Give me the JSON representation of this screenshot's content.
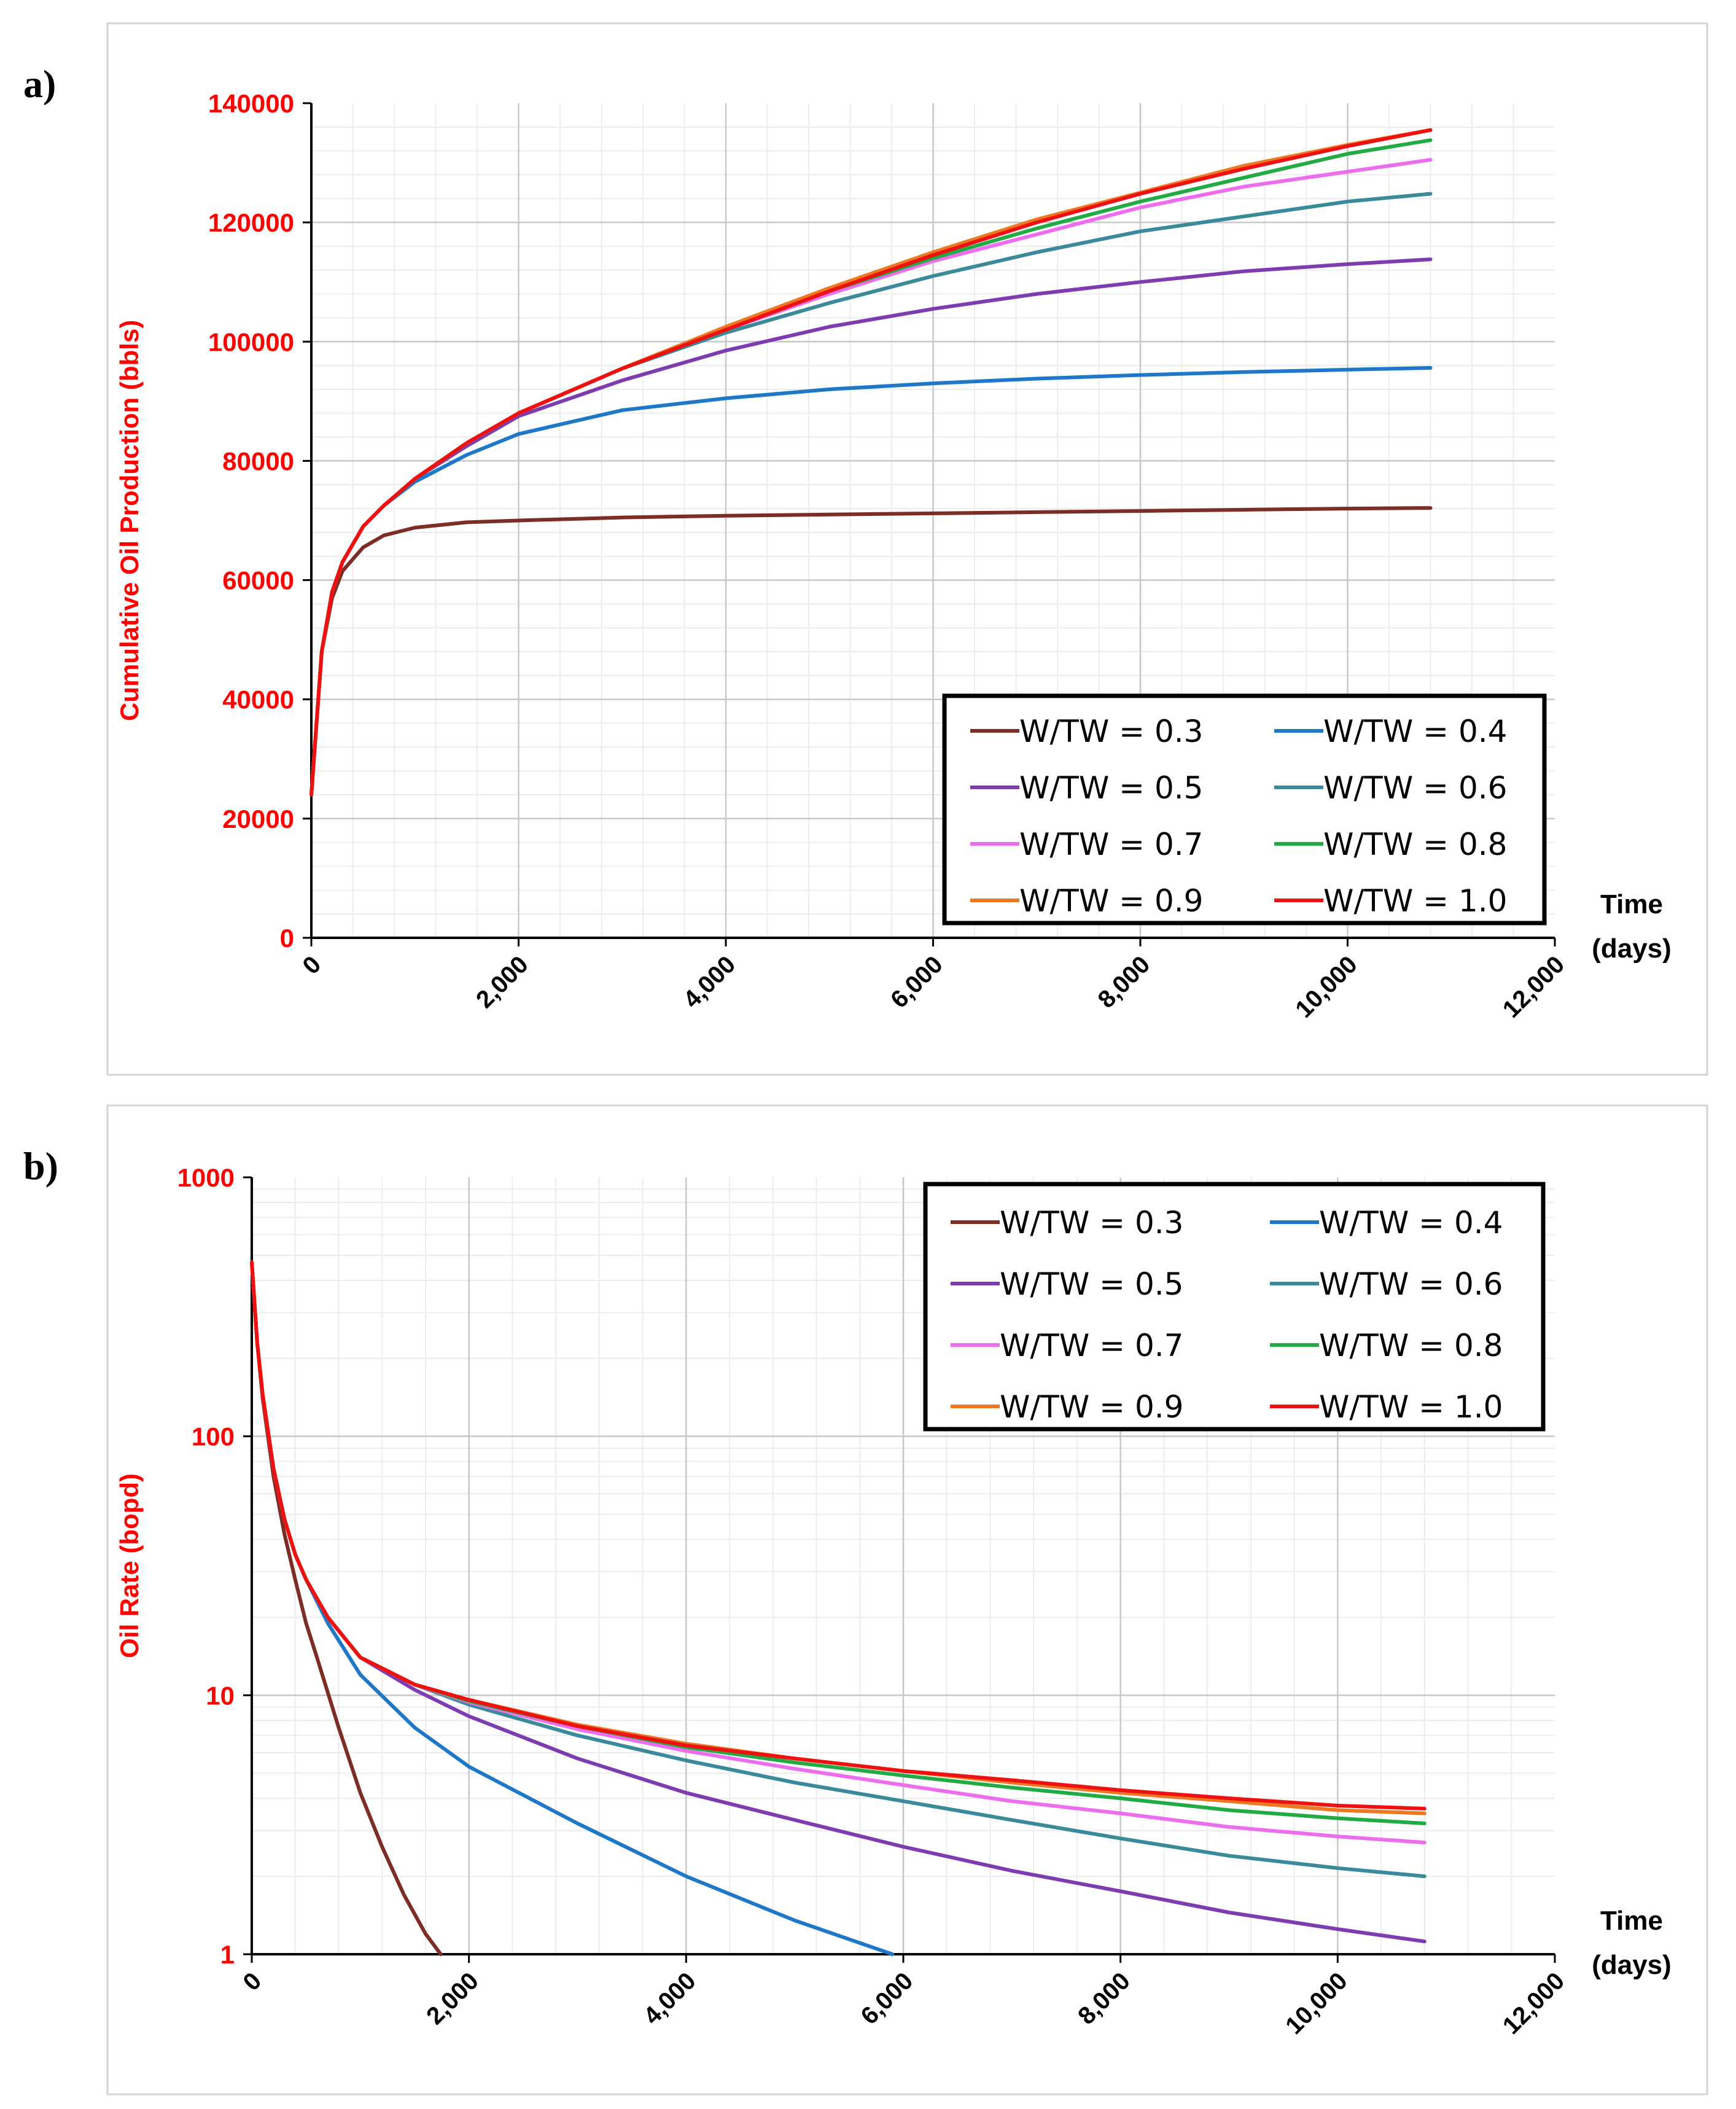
{
  "panels": {
    "a": {
      "label": "a)"
    },
    "b": {
      "label": "b)"
    }
  },
  "time_label": {
    "line1": "Time",
    "line2": "(days)"
  },
  "chart_data": [
    {
      "type": "line",
      "title": "",
      "xlabel": "Time (days)",
      "ylabel": "Cumulative Oil Production (bbls)",
      "xlim": [
        0,
        12000
      ],
      "ylim": [
        0,
        140000
      ],
      "yscale": "linear",
      "x_ticks": [
        "0",
        "2,000",
        "4,000",
        "6,000",
        "8,000",
        "10,000",
        "12,000"
      ],
      "y_ticks": [
        "0",
        "20000",
        "40000",
        "60000",
        "80000",
        "100000",
        "120000",
        "140000"
      ],
      "legend_position": "bottom-right",
      "x": [
        0,
        100,
        200,
        300,
        500,
        700,
        1000,
        1500,
        2000,
        3000,
        4000,
        5000,
        6000,
        7000,
        8000,
        9000,
        10000,
        10800
      ],
      "series": [
        {
          "name": "W/TW = 0.3",
          "color": "#7b2d26",
          "values": [
            24000,
            48000,
            57000,
            61500,
            65500,
            67500,
            68800,
            69700,
            70000,
            70500,
            70800,
            71000,
            71200,
            71400,
            71600,
            71800,
            72000,
            72100
          ]
        },
        {
          "name": "W/TW = 0.4",
          "color": "#1f77c8",
          "values": [
            24000,
            48000,
            58000,
            63000,
            69000,
            72500,
            76500,
            81000,
            84500,
            88500,
            90500,
            92000,
            93000,
            93800,
            94400,
            94900,
            95300,
            95600
          ]
        },
        {
          "name": "W/TW = 0.5",
          "color": "#7d3caf",
          "values": [
            24000,
            48000,
            58000,
            63000,
            69000,
            72500,
            77000,
            82500,
            87500,
            93500,
            98500,
            102500,
            105500,
            108000,
            110000,
            111800,
            113000,
            113800
          ]
        },
        {
          "name": "W/TW = 0.6",
          "color": "#3a8a9a",
          "values": [
            24000,
            48000,
            58000,
            63000,
            69000,
            72500,
            77000,
            83000,
            88000,
            95500,
            101500,
            106500,
            111000,
            115000,
            118500,
            121000,
            123500,
            124800
          ]
        },
        {
          "name": "W/TW = 0.7",
          "color": "#ee6cee",
          "values": [
            24000,
            48000,
            58000,
            63000,
            69000,
            72500,
            77000,
            83000,
            88000,
            95500,
            102000,
            108000,
            113500,
            118000,
            122500,
            126000,
            128500,
            130500
          ]
        },
        {
          "name": "W/TW = 0.8",
          "color": "#22aa44",
          "values": [
            24000,
            48000,
            58000,
            63000,
            69000,
            72500,
            77000,
            83000,
            88000,
            95500,
            102000,
            108500,
            114000,
            119000,
            123500,
            127500,
            131500,
            133800
          ]
        },
        {
          "name": "W/TW = 0.9",
          "color": "#ee7722",
          "values": [
            24000,
            48000,
            58000,
            63000,
            69000,
            72500,
            77000,
            83000,
            88000,
            95500,
            102500,
            109000,
            115000,
            120500,
            125000,
            129500,
            133000,
            135500
          ]
        },
        {
          "name": "W/TW = 1.0",
          "color": "#ee1111",
          "values": [
            24000,
            48000,
            58000,
            63000,
            69000,
            72500,
            77000,
            83000,
            88000,
            95500,
            102000,
            108500,
            114500,
            120000,
            124800,
            129000,
            132800,
            135500
          ]
        }
      ]
    },
    {
      "type": "line",
      "title": "",
      "xlabel": "Time (days)",
      "ylabel": "Oil Rate (bopd)",
      "xlim": [
        0,
        12000
      ],
      "ylim": [
        1,
        1000
      ],
      "yscale": "log",
      "x_ticks": [
        "0",
        "2,000",
        "4,000",
        "6,000",
        "8,000",
        "10,000",
        "12,000"
      ],
      "y_ticks": [
        "1",
        "10",
        "100",
        "1000"
      ],
      "legend_position": "top-right",
      "series": [
        {
          "name": "W/TW = 0.3",
          "color": "#7b2d26",
          "x": [
            0,
            50,
            100,
            200,
            300,
            400,
            500,
            600,
            800,
            1000,
            1200,
            1400,
            1600,
            1740
          ],
          "values": [
            470,
            230,
            140,
            70,
            42,
            28,
            19,
            14,
            7.5,
            4.2,
            2.6,
            1.7,
            1.2,
            1.0
          ]
        },
        {
          "name": "W/TW = 0.4",
          "color": "#1f77c8",
          "x": [
            0,
            50,
            100,
            200,
            300,
            400,
            500,
            700,
            1000,
            1500,
            2000,
            3000,
            4000,
            5000,
            5900
          ],
          "values": [
            470,
            230,
            145,
            75,
            48,
            35,
            28,
            19,
            12,
            7.5,
            5.3,
            3.2,
            2.0,
            1.35,
            1.0
          ]
        },
        {
          "name": "W/TW = 0.5",
          "color": "#7d3caf",
          "x": [
            0,
            50,
            100,
            200,
            300,
            400,
            500,
            700,
            1000,
            1500,
            2000,
            3000,
            4000,
            5000,
            6000,
            7000,
            8000,
            9000,
            10000,
            10800
          ],
          "values": [
            470,
            230,
            145,
            75,
            48,
            35,
            28,
            20,
            14,
            10.5,
            8.3,
            5.7,
            4.2,
            3.3,
            2.6,
            2.1,
            1.75,
            1.45,
            1.25,
            1.12
          ]
        },
        {
          "name": "W/TW = 0.6",
          "color": "#3a8a9a",
          "x": [
            0,
            50,
            100,
            200,
            300,
            400,
            500,
            700,
            1000,
            1500,
            2000,
            3000,
            4000,
            5000,
            6000,
            7000,
            8000,
            9000,
            10000,
            10800
          ],
          "values": [
            470,
            230,
            145,
            75,
            48,
            35,
            28,
            20,
            14,
            11,
            9.2,
            7.0,
            5.6,
            4.6,
            3.9,
            3.3,
            2.8,
            2.4,
            2.15,
            2.0
          ]
        },
        {
          "name": "W/TW = 0.7",
          "color": "#ee6cee",
          "x": [
            0,
            50,
            100,
            200,
            300,
            400,
            500,
            700,
            1000,
            1500,
            2000,
            3000,
            4000,
            5000,
            6000,
            7000,
            8000,
            9000,
            10000,
            10800
          ],
          "values": [
            470,
            230,
            145,
            75,
            48,
            35,
            28,
            20,
            14,
            11,
            9.4,
            7.4,
            6.1,
            5.2,
            4.5,
            3.9,
            3.5,
            3.1,
            2.85,
            2.7
          ]
        },
        {
          "name": "W/TW = 0.8",
          "color": "#22aa44",
          "x": [
            0,
            50,
            100,
            200,
            300,
            400,
            500,
            700,
            1000,
            1500,
            2000,
            3000,
            4000,
            5000,
            6000,
            7000,
            8000,
            9000,
            10000,
            10800
          ],
          "values": [
            470,
            230,
            145,
            75,
            48,
            35,
            28,
            20,
            14,
            11,
            9.5,
            7.6,
            6.3,
            5.5,
            4.9,
            4.4,
            4.0,
            3.6,
            3.35,
            3.2
          ]
        },
        {
          "name": "W/TW = 0.9",
          "color": "#ee7722",
          "x": [
            0,
            50,
            100,
            200,
            300,
            400,
            500,
            700,
            1000,
            1500,
            2000,
            3000,
            4000,
            5000,
            6000,
            7000,
            8000,
            9000,
            10000,
            10800
          ],
          "values": [
            470,
            230,
            145,
            75,
            48,
            35,
            28,
            20,
            14,
            11,
            9.6,
            7.7,
            6.5,
            5.7,
            5.1,
            4.6,
            4.2,
            3.9,
            3.6,
            3.5
          ]
        },
        {
          "name": "W/TW = 1.0",
          "color": "#ee1111",
          "x": [
            0,
            50,
            100,
            200,
            300,
            400,
            500,
            700,
            1000,
            1500,
            2000,
            3000,
            4000,
            5000,
            6000,
            7000,
            8000,
            9000,
            10000,
            10800
          ],
          "values": [
            470,
            230,
            145,
            75,
            48,
            35,
            28,
            20,
            14,
            11,
            9.6,
            7.6,
            6.4,
            5.7,
            5.1,
            4.7,
            4.3,
            4.0,
            3.75,
            3.65
          ]
        }
      ]
    }
  ]
}
